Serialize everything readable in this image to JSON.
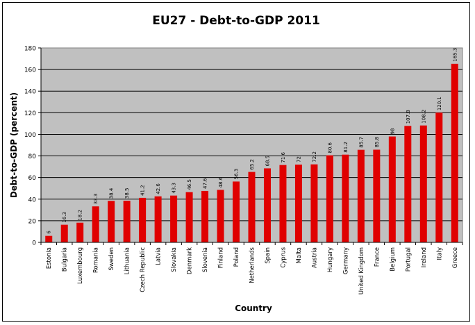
{
  "chart_data": {
    "type": "bar",
    "title": "EU27 - Debt-to-GDP 2011",
    "xlabel": "Country",
    "ylabel": "Debt-to-GDP (percent)",
    "ylim": [
      0,
      180
    ],
    "yticks": [
      0,
      20,
      40,
      60,
      80,
      100,
      120,
      140,
      160,
      180
    ],
    "grid": true,
    "legend": "none",
    "bar_color": "#e00000",
    "plot_background": "#c0c0c0",
    "categories": [
      "Estonia",
      "Bulgaria",
      "Luxembourg",
      "Romania",
      "Sweden",
      "Lithuania",
      "Czech Republic",
      "Latvia",
      "Slovakia",
      "Denmark",
      "Slovenia",
      "Finland",
      "Poland",
      "Netherlands",
      "Spain",
      "Cyprus",
      "Malta",
      "Austria",
      "Hungary",
      "Germany",
      "United Kingdom",
      "France",
      "Belgium",
      "Portugal",
      "Ireland",
      "Italy",
      "Greece"
    ],
    "values": [
      6,
      16.3,
      18.2,
      33.3,
      38.4,
      38.5,
      41.2,
      42.6,
      43.3,
      46.5,
      47.6,
      48.6,
      56.3,
      65.2,
      68.5,
      71.6,
      72,
      72.2,
      80.6,
      81.2,
      85.7,
      85.8,
      98,
      107.8,
      108.2,
      120.1,
      165.3
    ],
    "data_labels": [
      "6",
      "16.3",
      "18.2",
      "33.3",
      "38.4",
      "38.5",
      "41.2",
      "42.6",
      "43.3",
      "46.5",
      "47.6",
      "48.6",
      "56.3",
      "65.2",
      "68.5",
      "71.6",
      "72",
      "72.2",
      "80.6",
      "81.2",
      "85.7",
      "85.8",
      "98",
      "107.8",
      "108.2",
      "120.1",
      "165.3"
    ]
  }
}
